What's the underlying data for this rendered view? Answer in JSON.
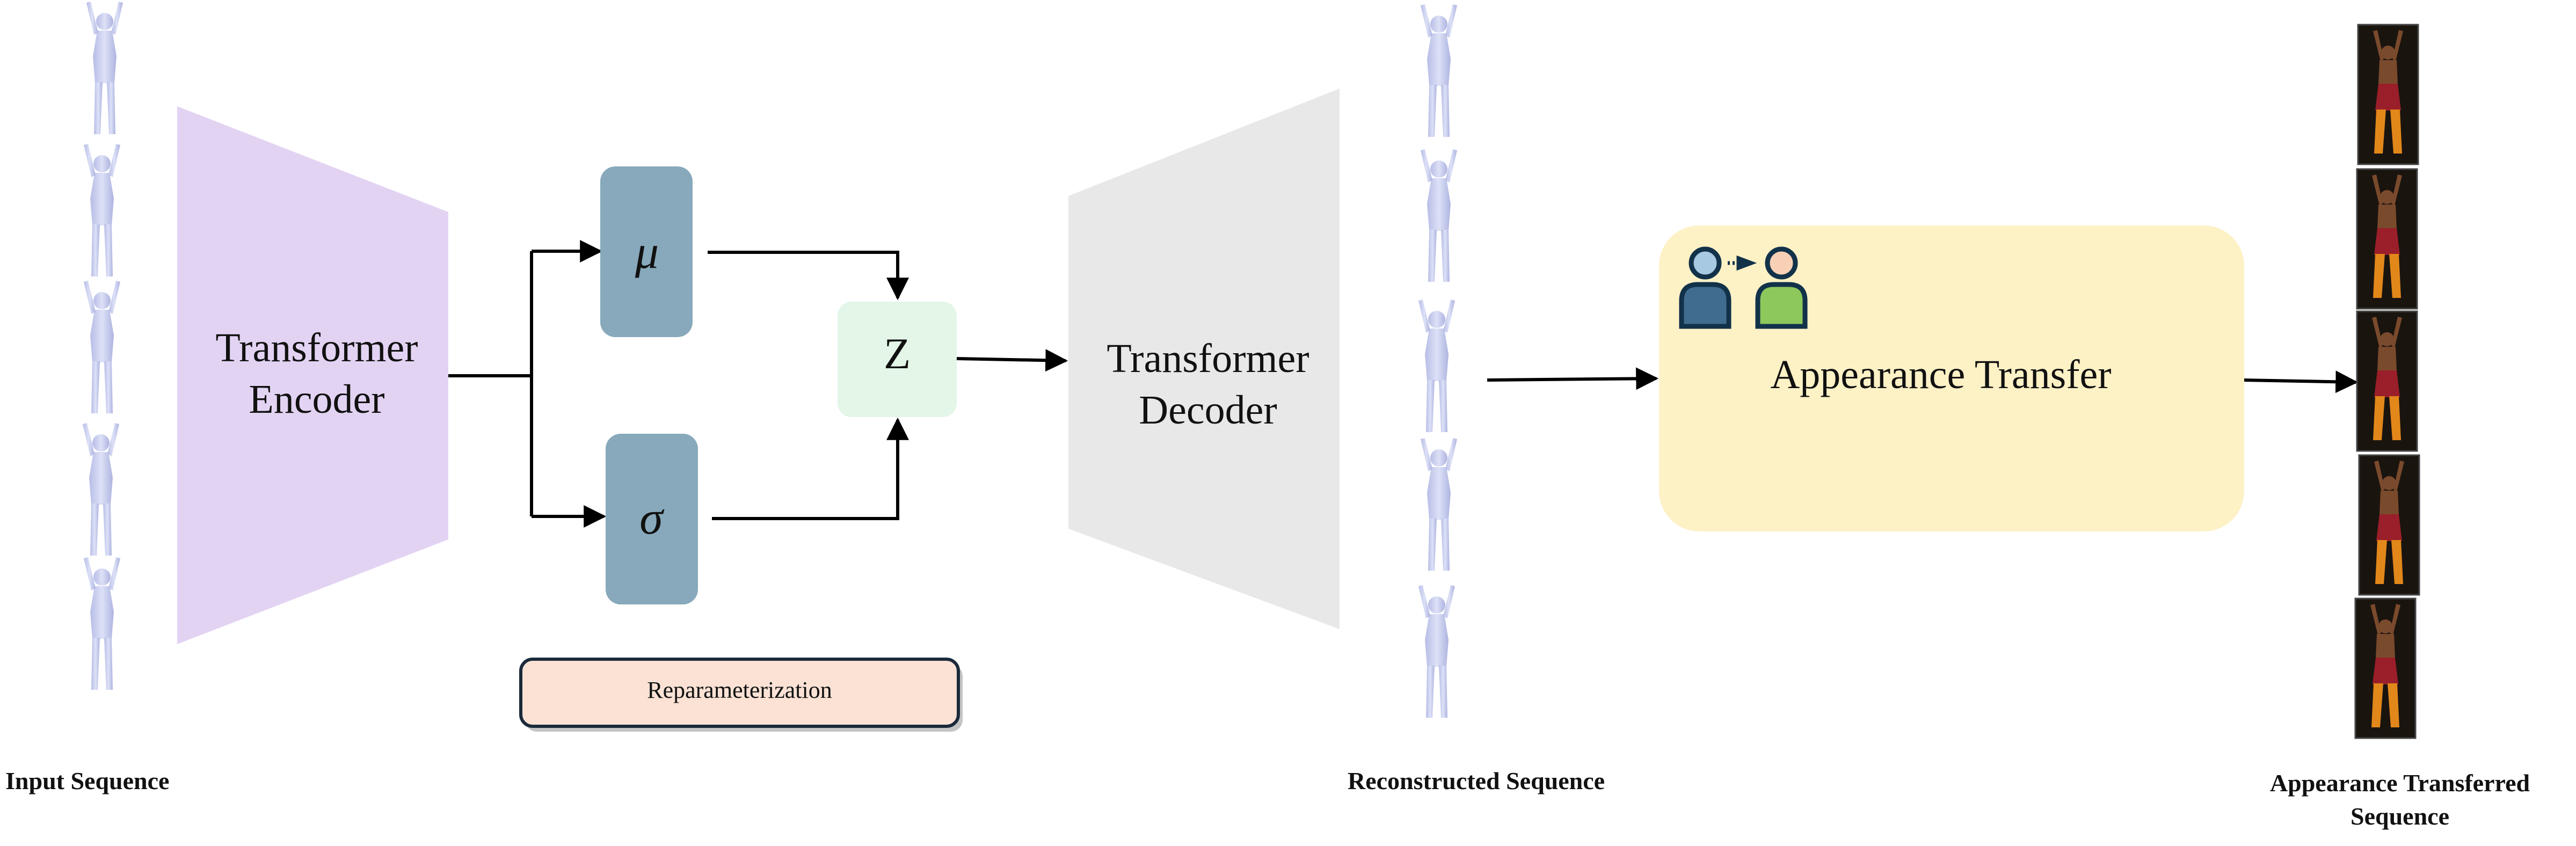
{
  "encoder": {
    "label": "Transformer Encoder",
    "color": "#e3d3f3"
  },
  "mu": {
    "symbol": "μ",
    "color": "#88a9bb"
  },
  "sigma": {
    "symbol": "σ",
    "color": "#88a9bb"
  },
  "z": {
    "symbol": "Z",
    "color": "#e3f6e7"
  },
  "reparameterization": {
    "label": "Reparameterization",
    "color": "#fbe2d5"
  },
  "decoder": {
    "label": "Transformer Decoder",
    "color": "#e8e8e8"
  },
  "appearance_transfer": {
    "label": "Appearance Transfer",
    "color": "#fdf1c6",
    "icon": "person-transfer-icon"
  },
  "captions": {
    "input": "Input Sequence",
    "reconstructed": "Reconstructed Sequence",
    "appearance": "Appearance Transferred Sequence"
  },
  "sequences": {
    "input_frames": 5,
    "reconstructed_frames": 5,
    "appearance_frames": 5
  }
}
